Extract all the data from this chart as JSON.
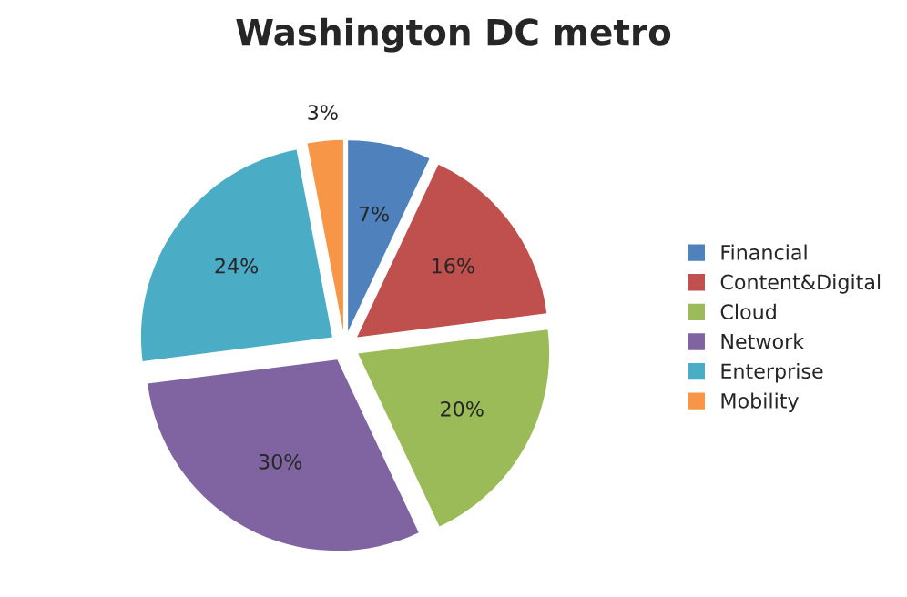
{
  "chart_data": {
    "type": "pie",
    "title": "Washington DC metro",
    "categories": [
      "Financial",
      "Content&Digital",
      "Cloud",
      "Network",
      "Enterprise",
      "Mobility"
    ],
    "values": [
      7,
      16,
      20,
      30,
      24,
      3
    ],
    "value_labels": [
      "7%",
      "16%",
      "20%",
      "30%",
      "24%",
      "3%"
    ],
    "colors": [
      "#4f81bd",
      "#c0504d",
      "#9bbb59",
      "#8064a2",
      "#4bacc6",
      "#f79646"
    ],
    "legend": "right"
  }
}
